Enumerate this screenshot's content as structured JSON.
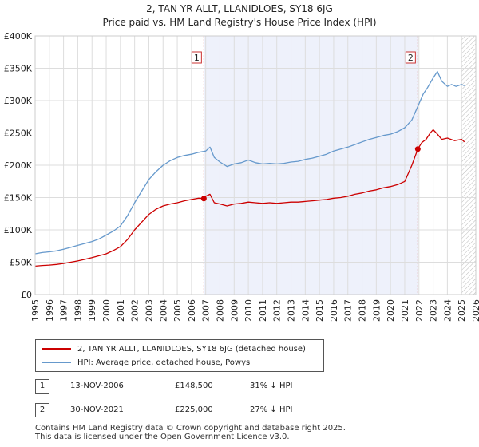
{
  "chart_data": {
    "type": "line",
    "title_line1": "2, TAN YR ALLT, LLANIDLOES, SY18 6JG",
    "title_line2": "Price paid vs. HM Land Registry's House Price Index (HPI)",
    "xlabel": "",
    "ylabel": "",
    "xlim": [
      1995,
      2026
    ],
    "ylim": [
      0,
      400000
    ],
    "y_ticks": [
      0,
      50000,
      100000,
      150000,
      200000,
      250000,
      300000,
      350000,
      400000
    ],
    "y_tick_labels": [
      "£0",
      "£50K",
      "£100K",
      "£150K",
      "£200K",
      "£250K",
      "£300K",
      "£350K",
      "£400K"
    ],
    "x_ticks": [
      1995,
      1996,
      1997,
      1998,
      1999,
      2000,
      2001,
      2002,
      2003,
      2004,
      2005,
      2006,
      2007,
      2008,
      2009,
      2010,
      2011,
      2012,
      2013,
      2014,
      2015,
      2016,
      2017,
      2018,
      2019,
      2020,
      2021,
      2022,
      2023,
      2024,
      2025,
      2026
    ],
    "grid": true,
    "shaded_region": [
      2006.87,
      2021.92
    ],
    "hatched_from": 2025.0,
    "series": [
      {
        "name": "2, TAN YR ALLT, LLANIDLOES, SY18 6JG (detached house)",
        "color": "#cc0000",
        "x": [
          1995.0,
          1995.5,
          1996.0,
          1996.5,
          1997.0,
          1997.5,
          1998.0,
          1998.5,
          1999.0,
          1999.5,
          2000.0,
          2000.5,
          2001.0,
          2001.5,
          2002.0,
          2002.5,
          2003.0,
          2003.5,
          2004.0,
          2004.5,
          2005.0,
          2005.5,
          2006.0,
          2006.5,
          2006.87,
          2007.0,
          2007.3,
          2007.6,
          2008.0,
          2008.5,
          2009.0,
          2009.5,
          2010.0,
          2010.5,
          2011.0,
          2011.5,
          2012.0,
          2012.5,
          2013.0,
          2013.5,
          2014.0,
          2014.5,
          2015.0,
          2015.5,
          2016.0,
          2016.5,
          2017.0,
          2017.5,
          2018.0,
          2018.5,
          2019.0,
          2019.5,
          2020.0,
          2020.5,
          2021.0,
          2021.5,
          2021.92,
          2022.2,
          2022.5,
          2022.8,
          2023.0,
          2023.3,
          2023.6,
          2024.0,
          2024.5,
          2025.0,
          2025.2
        ],
        "y": [
          44000,
          45000,
          45500,
          46500,
          48000,
          50000,
          52000,
          54500,
          57000,
          60000,
          63000,
          68000,
          74000,
          85000,
          100000,
          112000,
          124000,
          132000,
          137000,
          140000,
          142000,
          145000,
          147000,
          149000,
          148500,
          152000,
          155000,
          142000,
          140000,
          137000,
          140000,
          141000,
          143000,
          142000,
          141000,
          142000,
          141000,
          142000,
          143000,
          143000,
          144000,
          145000,
          146000,
          147000,
          149000,
          150000,
          152000,
          155000,
          157000,
          160000,
          162000,
          165000,
          167000,
          170000,
          175000,
          200000,
          225000,
          235000,
          240000,
          250000,
          255000,
          248000,
          240000,
          242000,
          238000,
          240000,
          236000
        ]
      },
      {
        "name": "HPI: Average price, detached house, Powys",
        "color": "#6699cc",
        "x": [
          1995.0,
          1995.5,
          1996.0,
          1996.5,
          1997.0,
          1997.5,
          1998.0,
          1998.5,
          1999.0,
          1999.5,
          2000.0,
          2000.5,
          2001.0,
          2001.5,
          2002.0,
          2002.5,
          2003.0,
          2003.5,
          2004.0,
          2004.5,
          2005.0,
          2005.5,
          2006.0,
          2006.5,
          2007.0,
          2007.3,
          2007.6,
          2008.0,
          2008.5,
          2009.0,
          2009.5,
          2010.0,
          2010.5,
          2011.0,
          2011.5,
          2012.0,
          2012.5,
          2013.0,
          2013.5,
          2014.0,
          2014.5,
          2015.0,
          2015.5,
          2016.0,
          2016.5,
          2017.0,
          2017.5,
          2018.0,
          2018.5,
          2019.0,
          2019.5,
          2020.0,
          2020.5,
          2021.0,
          2021.5,
          2022.0,
          2022.3,
          2022.6,
          2023.0,
          2023.3,
          2023.6,
          2024.0,
          2024.3,
          2024.6,
          2025.0,
          2025.2
        ],
        "y": [
          63000,
          65000,
          66000,
          67500,
          70000,
          73000,
          76000,
          79000,
          82000,
          86000,
          92000,
          98000,
          106000,
          122000,
          142000,
          160000,
          178000,
          190000,
          200000,
          207000,
          212000,
          215000,
          217000,
          220000,
          222000,
          228000,
          212000,
          205000,
          198000,
          202000,
          204000,
          208000,
          204000,
          202000,
          203000,
          202000,
          203000,
          205000,
          206000,
          209000,
          211000,
          214000,
          217000,
          222000,
          225000,
          228000,
          232000,
          236000,
          240000,
          243000,
          246000,
          248000,
          252000,
          258000,
          270000,
          295000,
          310000,
          320000,
          335000,
          345000,
          330000,
          322000,
          325000,
          322000,
          325000,
          323000
        ]
      }
    ],
    "sales": [
      {
        "label": "1",
        "x": 2006.87,
        "value": 148500,
        "date": "13-NOV-2006",
        "price": "£148,500",
        "delta": "31% ↓ HPI"
      },
      {
        "label": "2",
        "x": 2021.92,
        "value": 225000,
        "date": "30-NOV-2021",
        "price": "£225,000",
        "delta": "27% ↓ HPI"
      }
    ]
  },
  "footer": {
    "line1": "Contains HM Land Registry data © Crown copyright and database right 2025.",
    "line2": "This data is licensed under the Open Government Licence v3.0."
  }
}
